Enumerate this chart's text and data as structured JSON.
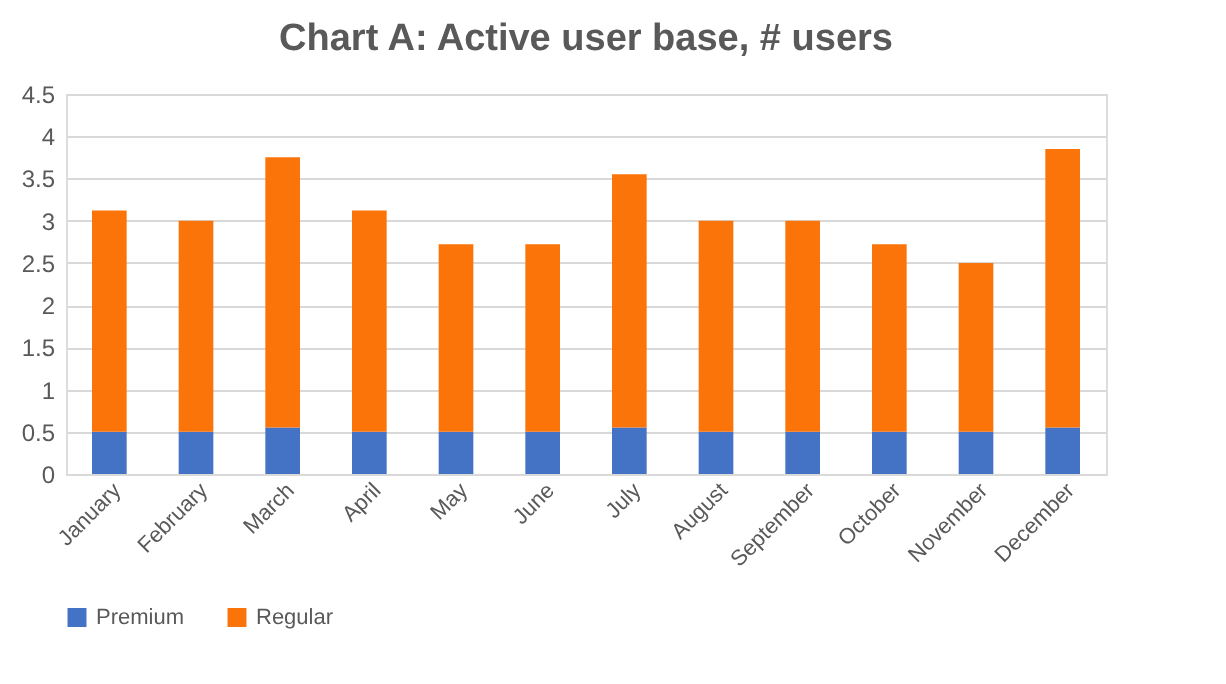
{
  "chart_data": {
    "type": "bar",
    "title": "Chart A: Active user base, # users",
    "categories": [
      "January",
      "February",
      "March",
      "April",
      "May",
      "June",
      "July",
      "August",
      "September",
      "October",
      "November",
      "December"
    ],
    "stacked": true,
    "series": [
      {
        "name": "Premium",
        "color": "#4472c4",
        "values": [
          0.5,
          0.5,
          0.55,
          0.5,
          0.5,
          0.5,
          0.55,
          0.5,
          0.5,
          0.5,
          0.5,
          0.55
        ]
      },
      {
        "name": "Regular",
        "color": "#fb740a",
        "values": [
          2.62,
          2.5,
          3.2,
          2.62,
          2.22,
          2.22,
          3.0,
          2.5,
          2.5,
          2.22,
          2.0,
          3.3
        ]
      }
    ],
    "ylim": [
      0,
      4.5
    ],
    "yticks": [
      0,
      0.5,
      1,
      1.5,
      2,
      2.5,
      3,
      3.5,
      4,
      4.5
    ],
    "grid": "y",
    "legend": "bottom"
  }
}
